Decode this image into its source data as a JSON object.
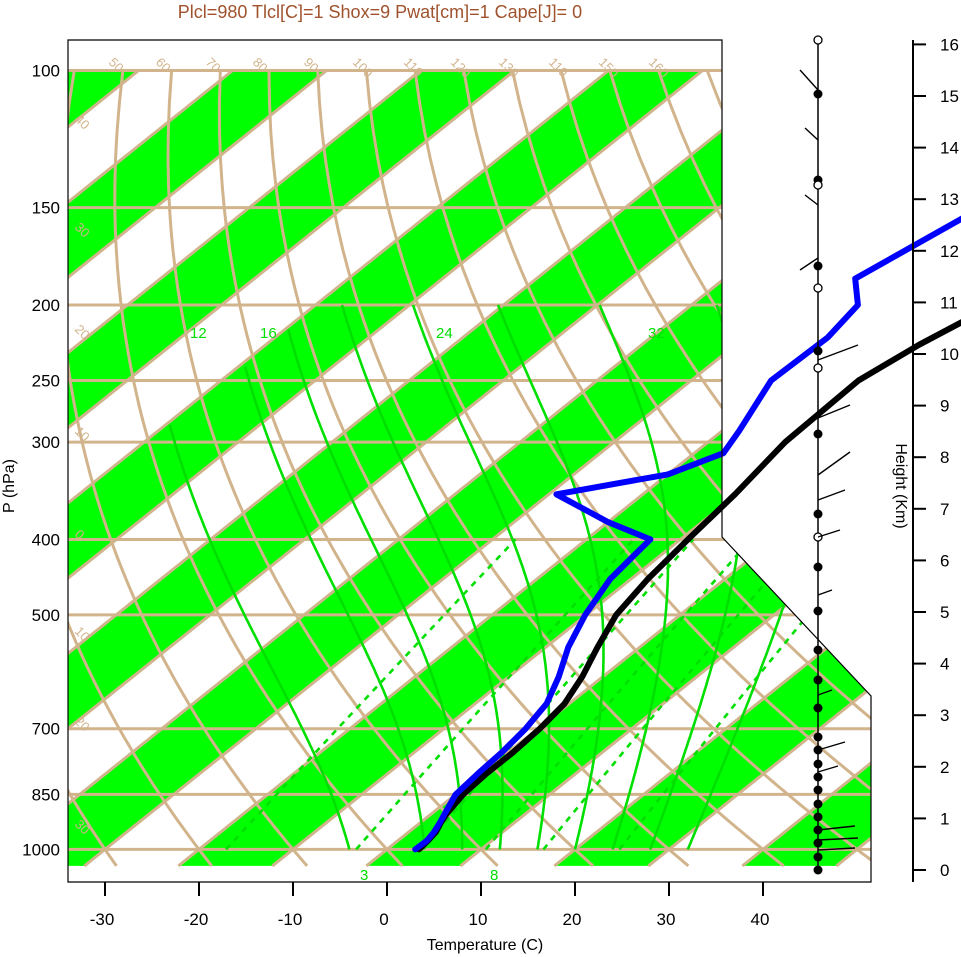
{
  "colors": {
    "band_green": "#00ff00",
    "isoline_tan": "#d2b48c",
    "dry_adiabat_tan": "#d2b48c",
    "moist_adiabat": "#00e000",
    "mixing_ratio": "#00e000",
    "temperature_line": "#000000",
    "dewpoint_line": "#0000ff",
    "title_color": "#a0522d"
  },
  "chart_data": {
    "type": "line",
    "title": "Plcl=980 Tlcl[C]=1 Shox=9 Pwat[cm]=1 Cape[J]= 0",
    "xlabel": "Temperature (C)",
    "ylabel": "P (hPa)",
    "y2label": "Height (Km)",
    "y_scale": "log (inverted)",
    "ylim": [
      1050,
      100
    ],
    "xlim": [
      -34,
      51
    ],
    "x_ticks": [
      "-30",
      "-20",
      "-10",
      "0",
      "10",
      "20",
      "30",
      "40"
    ],
    "y_ticks": [
      "100",
      "150",
      "200",
      "250",
      "300",
      "400",
      "500",
      "700",
      "850",
      "1000"
    ],
    "height_ticks": [
      "0",
      "1",
      "2",
      "3",
      "4",
      "5",
      "6",
      "7",
      "8",
      "9",
      "10",
      "11",
      "12",
      "13",
      "14",
      "15",
      "16"
    ],
    "skew_labels": [
      "50",
      "60",
      "70",
      "80",
      "90",
      "100",
      "110",
      "120",
      "130",
      "110",
      "150",
      "160"
    ],
    "right_skew_labels": [
      "30",
      "20",
      "10",
      "0",
      "10",
      "20",
      "30"
    ],
    "left_skew_labels": [
      "40",
      "30",
      "20",
      "10",
      "0",
      "10",
      "20",
      "30"
    ],
    "mixing_ratio_labels": [
      "12",
      "16",
      "24",
      "32"
    ],
    "mixing_ratio_bottom_labels": [
      "3",
      "8"
    ],
    "series": [
      {
        "name": "",
        "p": [
          1000,
          975,
          950,
          925,
          900,
          850,
          800,
          750,
          700,
          650,
          600,
          550,
          500,
          450,
          400,
          350,
          300,
          250,
          225,
          200,
          175,
          150,
          125,
          110
        ],
        "values": [
          3.4,
          3.2,
          2.9,
          2.2,
          1.6,
          0.8,
          0.5,
          0.5,
          0.2,
          -0.5,
          -2.2,
          -4.5,
          -6.8,
          -8.2,
          -9.2,
          -10.2,
          -11.8,
          -12.2,
          -10.5,
          -7.8,
          -3.2,
          -0.2,
          1.8,
          2.8
        ]
      },
      {
        "name": "",
        "p": [
          1000,
          975,
          950,
          925,
          900,
          850,
          800,
          750,
          700,
          650,
          600,
          550,
          500,
          450,
          420,
          400,
          380,
          350,
          330,
          310,
          290,
          250,
          220,
          200,
          185,
          110
        ],
        "values": [
          3.0,
          3.1,
          2.7,
          2.1,
          1.4,
          0.0,
          -0.4,
          -0.7,
          -1.3,
          -2.4,
          -4.7,
          -7.6,
          -10.1,
          -12.2,
          -12.8,
          -13.2,
          -20,
          -29.2,
          -20,
          -16.9,
          -18.2,
          -21.5,
          -21.2,
          -22.3,
          -26.1,
          -16.2
        ]
      }
    ]
  }
}
